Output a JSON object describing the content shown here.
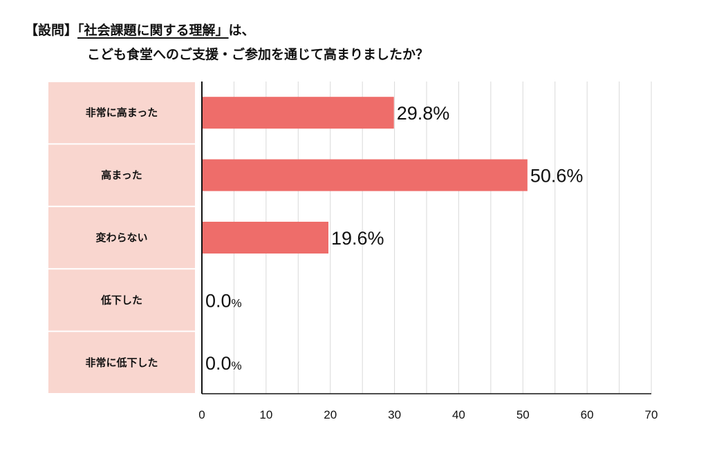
{
  "header": {
    "prefix": "【設問】",
    "question_quoted": "「社会課題に関する理解」",
    "question_rest": "は、",
    "question_line2": "こども食堂へのご支援・ご参加を通じて高まりましたか？"
  },
  "colors": {
    "bar": "#ee6d6a",
    "label_panel": "#f9d6cf",
    "grid": "#d9d9d9",
    "axis": "#111111"
  },
  "chart_data": {
    "type": "bar",
    "orientation": "horizontal",
    "title": "【設問】「社会課題に関する理解」は、こども食堂へのご支援・ご参加を通じて高まりましたか？",
    "categories": [
      "非常に高まった",
      "高まった",
      "変わらない",
      "低下した",
      "非常に低下した"
    ],
    "values": [
      29.8,
      50.6,
      19.6,
      0.0,
      0.0
    ],
    "value_labels": [
      "29.8%",
      "50.6%",
      "19.6%",
      "0.0%",
      "0.0%"
    ],
    "xlim": [
      0,
      70
    ],
    "xticks": [
      0,
      10,
      20,
      30,
      40,
      50,
      60,
      70
    ],
    "xlabel": "",
    "ylabel": "",
    "grid": true,
    "legend": "none"
  }
}
